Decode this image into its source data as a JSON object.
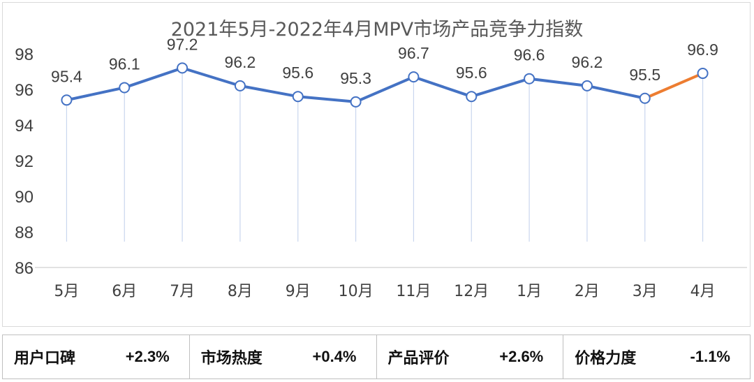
{
  "chart_data": {
    "type": "line",
    "title": "2021年5月-2022年4月MPV市场产品竞争力指数",
    "categories": [
      "5月",
      "6月",
      "7月",
      "8月",
      "9月",
      "10月",
      "11月",
      "12月",
      "1月",
      "2月",
      "3月",
      "4月"
    ],
    "values": [
      95.4,
      96.1,
      97.2,
      96.2,
      95.6,
      95.3,
      96.7,
      95.6,
      96.6,
      96.2,
      95.5,
      96.9
    ],
    "value_labels": [
      "95.4",
      "96.1",
      "97.2",
      "96.2",
      "95.6",
      "95.3",
      "96.7",
      "95.6",
      "96.6",
      "96.2",
      "95.5",
      "96.9"
    ],
    "ylim": [
      86,
      98
    ],
    "yticks": [
      "86",
      "88",
      "90",
      "92",
      "94",
      "96",
      "98"
    ],
    "xlabel": "",
    "ylabel": "",
    "colors": {
      "line": "#4472c4",
      "highlight": "#ed7d31",
      "marker_fill": "#ffffff",
      "drop_line": "#c9d6ee"
    }
  },
  "metrics": [
    {
      "label": "用户口碑",
      "value": "+2.3%"
    },
    {
      "label": "市场热度",
      "value": "+0.4%"
    },
    {
      "label": "产品评价",
      "value": "+2.6%"
    },
    {
      "label": "价格力度",
      "value": "-1.1%"
    }
  ]
}
